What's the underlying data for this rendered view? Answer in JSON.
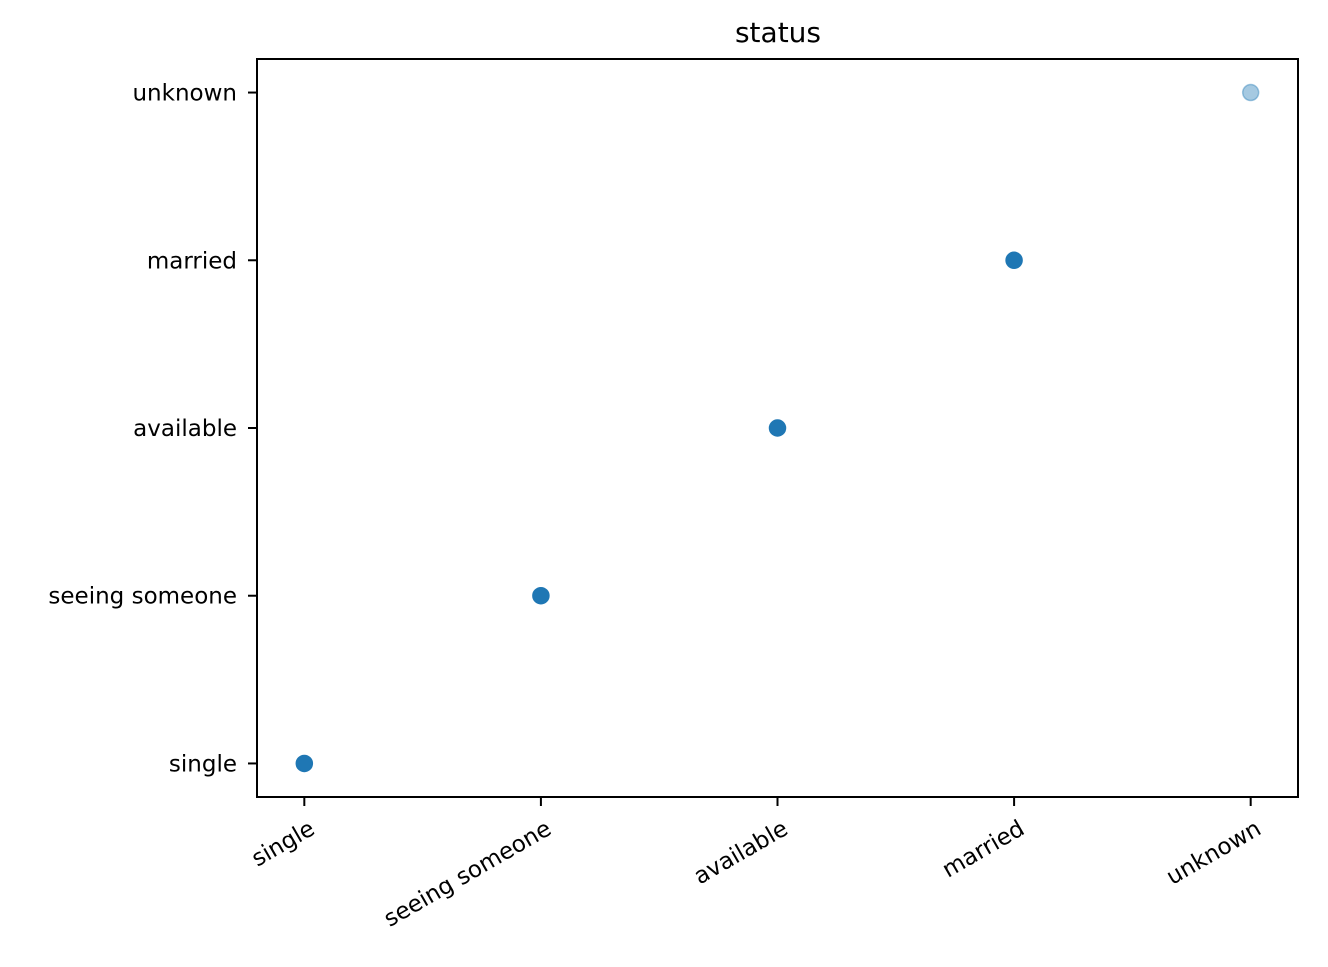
{
  "chart_data": {
    "type": "scatter",
    "title": "status",
    "xlabel": "",
    "ylabel": "",
    "categories": [
      "single",
      "seeing someone",
      "available",
      "married",
      "unknown"
    ],
    "x_tick_labels": [
      "single",
      "seeing someone",
      "available",
      "married",
      "unknown"
    ],
    "y_tick_labels": [
      "single",
      "seeing someone",
      "available",
      "married",
      "unknown"
    ],
    "xlim": [
      -0.2,
      4.2
    ],
    "ylim": [
      -0.2,
      4.2
    ],
    "grid": false,
    "color": "#1f77b4",
    "points": [
      {
        "x": "single",
        "y": "single",
        "opacity": 1.0
      },
      {
        "x": "seeing someone",
        "y": "seeing someone",
        "opacity": 1.0
      },
      {
        "x": "available",
        "y": "available",
        "opacity": 1.0
      },
      {
        "x": "married",
        "y": "married",
        "opacity": 1.0
      },
      {
        "x": "unknown",
        "y": "unknown",
        "opacity": 0.4
      }
    ]
  }
}
